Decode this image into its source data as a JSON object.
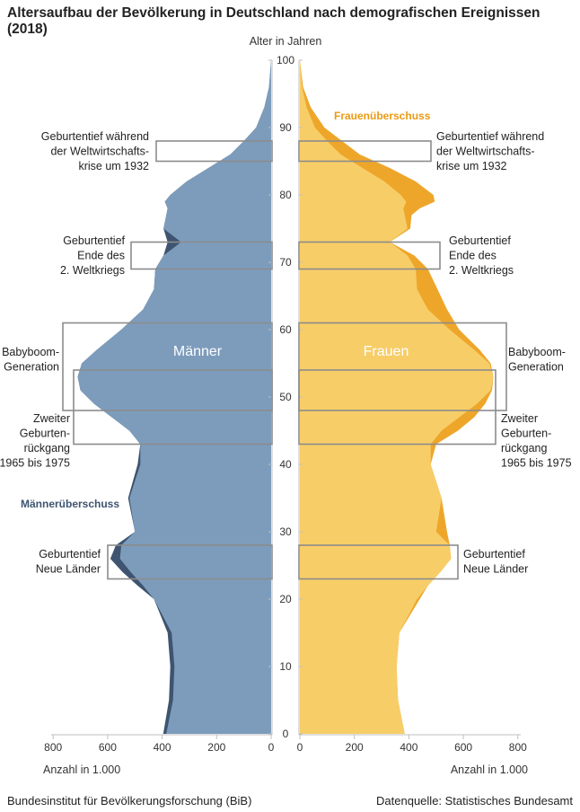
{
  "title": "Altersaufbau der Bevölkerung in Deutschland nach demografischen Ereignissen (2018)",
  "footer": {
    "left": "Bundesinstitut für Bevölkerungsforschung (BiB)",
    "right": "Datenquelle: Statistisches Bundesamt"
  },
  "colors": {
    "male": "#7d9cbc",
    "male_surplus": "#3e5470",
    "female": "#f7cd68",
    "female_surplus": "#eea62a",
    "box": "#8c8c8c",
    "surplus_label_female": "#e99a14",
    "surplus_label_male": "#3e5470"
  },
  "chart_data": {
    "type": "population_pyramid",
    "title": "Altersaufbau der Bevölkerung in Deutschland nach demografischen Ereignissen (2018)",
    "age_axis_label": "Alter in Jahren",
    "age_ticks": [
      0,
      10,
      20,
      30,
      40,
      50,
      60,
      70,
      80,
      90,
      100
    ],
    "x_ticks": [
      0,
      200,
      400,
      600,
      800
    ],
    "x_max": 800,
    "xlabel_left": "Anzahl in 1.000",
    "xlabel_right": "Anzahl in 1.000",
    "series_labels": {
      "male": "Männer",
      "female": "Frauen"
    },
    "surplus_labels": {
      "male": "Männerüberschuss",
      "female": "Frauenüberschuss"
    },
    "ages": [
      0,
      5,
      10,
      15,
      20,
      22,
      24,
      26,
      28,
      30,
      35,
      40,
      43,
      45,
      47,
      49,
      51,
      53,
      55,
      57,
      60,
      63,
      66,
      69,
      71,
      73,
      75,
      77,
      78,
      79,
      80,
      82,
      84,
      86,
      88,
      90,
      93,
      96,
      100
    ],
    "male": [
      396,
      375,
      370,
      380,
      430,
      490,
      545,
      590,
      570,
      500,
      525,
      490,
      480,
      520,
      585,
      650,
      700,
      710,
      695,
      640,
      550,
      470,
      430,
      425,
      395,
      380,
      395,
      385,
      380,
      390,
      370,
      310,
      230,
      150,
      100,
      55,
      25,
      8,
      0
    ],
    "female": [
      385,
      360,
      355,
      365,
      440,
      470,
      515,
      555,
      550,
      540,
      520,
      480,
      500,
      580,
      640,
      680,
      705,
      710,
      700,
      660,
      585,
      540,
      505,
      470,
      420,
      330,
      405,
      410,
      440,
      495,
      490,
      425,
      330,
      220,
      155,
      90,
      40,
      12,
      0
    ],
    "events": [
      {
        "label": "Geburtentief während der Weltwirtschafts-krise um 1932",
        "lines": [
          "Geburtentief während",
          "der Weltwirtschafts-",
          "krise um 1932"
        ],
        "age_from": 85,
        "age_to": 88
      },
      {
        "label": "Geburtentief Ende des 2. Weltkriegs",
        "lines": [
          "Geburtentief",
          "Ende des",
          "2. Weltkriegs"
        ],
        "age_from": 69,
        "age_to": 73
      },
      {
        "label": "Babyboom-Generation",
        "lines": [
          "Babyboom-",
          "Generation"
        ],
        "age_from": 48,
        "age_to": 61
      },
      {
        "label": "Zweiter Geburten-rückgang 1965 bis 1975",
        "lines": [
          "Zweiter",
          "Geburten-",
          "rückgang",
          "1965 bis 1975"
        ],
        "age_from": 43,
        "age_to": 54
      },
      {
        "label": "Geburtentief Neue Länder",
        "lines": [
          "Geburtentief",
          "Neue Länder"
        ],
        "age_from": 23,
        "age_to": 28
      }
    ]
  }
}
